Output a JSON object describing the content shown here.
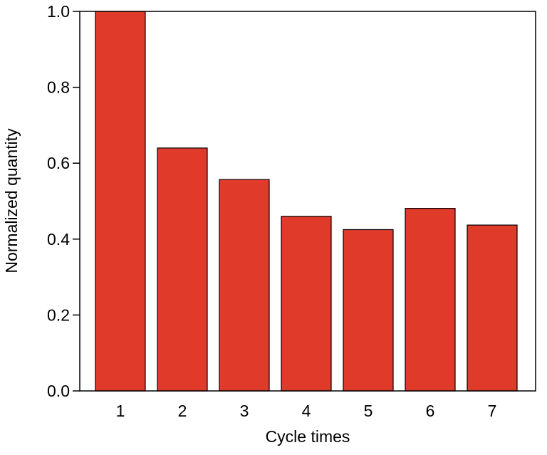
{
  "chart_data": {
    "type": "bar",
    "title": "",
    "xlabel": "Cycle times",
    "ylabel": "Normalized quantity",
    "categories": [
      "1",
      "2",
      "3",
      "4",
      "5",
      "6",
      "7"
    ],
    "values": [
      1.0,
      0.64,
      0.557,
      0.46,
      0.425,
      0.481,
      0.437
    ],
    "ylim": [
      0.0,
      1.0
    ],
    "yticks": [
      "0.0",
      "0.2",
      "0.4",
      "0.6",
      "0.8",
      "1.0"
    ],
    "grid": false,
    "legend": "none",
    "colors": {
      "bar_fill": "#e03a2b",
      "bar_stroke": "#000000"
    }
  }
}
